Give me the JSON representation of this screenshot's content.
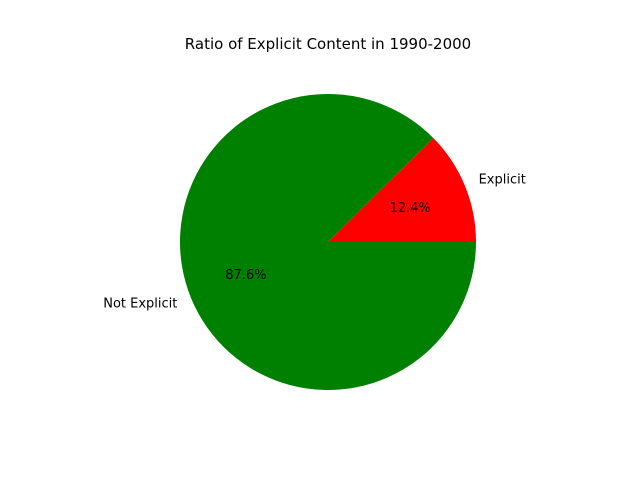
{
  "chart_data": {
    "type": "pie",
    "title": "Ratio of Explicit Content in 1990-2000",
    "slices": [
      {
        "label": "Explicit",
        "value": 12.4,
        "pct_label": "12.4%",
        "color": "#ff0000"
      },
      {
        "label": "Not Explicit",
        "value": 87.6,
        "pct_label": "87.6%",
        "color": "#008000"
      }
    ],
    "start_angle_deg": 0,
    "direction": "counterclockwise",
    "legend": "none"
  }
}
